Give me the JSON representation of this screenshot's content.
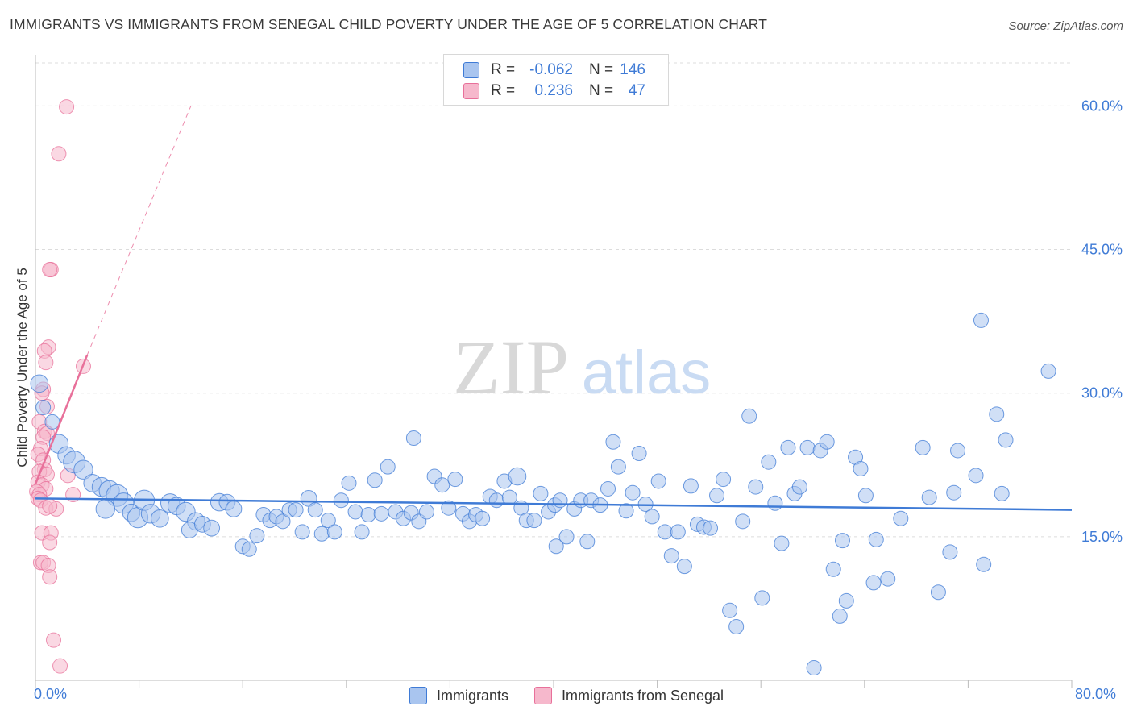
{
  "title": "IMMIGRANTS VS IMMIGRANTS FROM SENEGAL CHILD POVERTY UNDER THE AGE OF 5 CORRELATION CHART",
  "source": "Source: ZipAtlas.com",
  "watermark": {
    "zip": "ZIP",
    "atlas": "atlas"
  },
  "colors": {
    "blue": "#3f7bd6",
    "blue_fill": "#a9c5ef",
    "pink": "#e8709a",
    "pink_fill": "#f6b8cc"
  },
  "legend": {
    "rows": [
      {
        "r_label": "R =",
        "r_value": "-0.062",
        "n_label": "N =",
        "n_value": "146"
      },
      {
        "r_label": "R =",
        "r_value": "0.236",
        "n_label": "N =",
        "n_value": "47"
      }
    ]
  },
  "bottom_legend": [
    "Immigrants",
    "Immigrants from Senegal"
  ],
  "chart_data": {
    "type": "scatter",
    "title": "IMMIGRANTS VS IMMIGRANTS FROM SENEGAL CHILD POVERTY UNDER THE AGE OF 5 CORRELATION CHART",
    "xlabel": "",
    "ylabel": "Child Poverty Under the Age of 5",
    "x_tick_labels": [
      "0.0%",
      "80.0%"
    ],
    "y_tick_labels": [
      "15.0%",
      "30.0%",
      "45.0%",
      "60.0%"
    ],
    "xlim": [
      0,
      80
    ],
    "ylim": [
      0,
      65
    ],
    "y_ticks": [
      15,
      30,
      45,
      60
    ],
    "grid": true,
    "legend_position": "top-center",
    "series": [
      {
        "name": "Immigrants",
        "color": "#3f7bd6",
        "fill": "#a9c5ef",
        "trend": {
          "x": [
            0,
            80
          ],
          "y": [
            19.0,
            17.8
          ],
          "style": "solid"
        },
        "points": [
          [
            0.3,
            31.0,
            1.2
          ],
          [
            0.6,
            28.5,
            1.0
          ],
          [
            1.3,
            27.0,
            1.0
          ],
          [
            1.8,
            24.7,
            1.3
          ],
          [
            2.4,
            23.5,
            1.2
          ],
          [
            3.0,
            22.8,
            1.5
          ],
          [
            3.7,
            22.0,
            1.3
          ],
          [
            4.4,
            20.6,
            1.2
          ],
          [
            5.1,
            20.2,
            1.3
          ],
          [
            5.7,
            19.8,
            1.4
          ],
          [
            6.3,
            19.3,
            1.5
          ],
          [
            6.8,
            18.5,
            1.4
          ],
          [
            5.4,
            17.9,
            1.3
          ],
          [
            7.4,
            17.5,
            1.2
          ],
          [
            7.9,
            17.0,
            1.4
          ],
          [
            8.4,
            18.8,
            1.4
          ],
          [
            8.9,
            17.4,
            1.3
          ],
          [
            9.6,
            16.9,
            1.2
          ],
          [
            10.4,
            18.5,
            1.3
          ],
          [
            10.9,
            18.2,
            1.2
          ],
          [
            11.6,
            17.6,
            1.3
          ],
          [
            12.4,
            16.6,
            1.2
          ],
          [
            11.9,
            15.7,
            1.1
          ],
          [
            12.9,
            16.3,
            1.1
          ],
          [
            13.6,
            15.9,
            1.1
          ],
          [
            14.2,
            18.6,
            1.2
          ],
          [
            14.8,
            18.6,
            1.1
          ],
          [
            15.3,
            17.9,
            1.1
          ],
          [
            16.0,
            14.0,
            1.0
          ],
          [
            16.5,
            13.7,
            1.0
          ],
          [
            17.1,
            15.1,
            1.0
          ],
          [
            17.6,
            17.3,
            1.0
          ],
          [
            18.1,
            16.7,
            1.0
          ],
          [
            18.6,
            17.1,
            1.0
          ],
          [
            19.1,
            16.6,
            1.0
          ],
          [
            19.6,
            17.8,
            1.0
          ],
          [
            20.1,
            17.8,
            1.0
          ],
          [
            20.6,
            15.5,
            1.0
          ],
          [
            21.1,
            19.0,
            1.1
          ],
          [
            21.6,
            17.8,
            1.0
          ],
          [
            22.1,
            15.3,
            1.0
          ],
          [
            22.6,
            16.7,
            1.0
          ],
          [
            23.1,
            15.5,
            1.0
          ],
          [
            23.6,
            18.8,
            1.0
          ],
          [
            24.2,
            20.6,
            1.0
          ],
          [
            24.7,
            17.6,
            1.0
          ],
          [
            25.2,
            15.5,
            1.0
          ],
          [
            25.7,
            17.3,
            1.0
          ],
          [
            26.2,
            20.9,
            1.0
          ],
          [
            26.7,
            17.4,
            1.0
          ],
          [
            27.2,
            22.3,
            1.0
          ],
          [
            27.8,
            17.6,
            1.0
          ],
          [
            28.4,
            16.9,
            1.0
          ],
          [
            29.0,
            17.5,
            1.0
          ],
          [
            29.6,
            16.6,
            1.0
          ],
          [
            30.2,
            17.6,
            1.0
          ],
          [
            29.2,
            25.3,
            1.0
          ],
          [
            30.8,
            21.3,
            1.0
          ],
          [
            31.4,
            20.4,
            1.0
          ],
          [
            31.9,
            18.0,
            1.0
          ],
          [
            32.4,
            21.0,
            1.0
          ],
          [
            33.0,
            17.4,
            1.0
          ],
          [
            33.5,
            16.6,
            1.0
          ],
          [
            34.0,
            17.3,
            1.0
          ],
          [
            34.5,
            16.9,
            1.0
          ],
          [
            35.1,
            19.2,
            1.0
          ],
          [
            35.6,
            18.8,
            1.0
          ],
          [
            36.2,
            20.8,
            1.0
          ],
          [
            36.6,
            19.1,
            1.0
          ],
          [
            37.2,
            21.3,
            1.2
          ],
          [
            37.5,
            18.0,
            1.0
          ],
          [
            37.9,
            16.7,
            1.0
          ],
          [
            38.5,
            16.7,
            1.0
          ],
          [
            39.0,
            19.5,
            1.0
          ],
          [
            39.6,
            17.6,
            1.0
          ],
          [
            40.1,
            18.3,
            1.0
          ],
          [
            40.5,
            18.8,
            1.0
          ],
          [
            40.2,
            14.0,
            1.0
          ],
          [
            41.0,
            15.0,
            1.0
          ],
          [
            41.6,
            17.9,
            1.0
          ],
          [
            42.1,
            18.8,
            1.0
          ],
          [
            42.6,
            14.5,
            1.0
          ],
          [
            42.9,
            18.8,
            1.0
          ],
          [
            43.6,
            18.3,
            1.0
          ],
          [
            44.2,
            20.0,
            1.0
          ],
          [
            44.6,
            24.9,
            1.0
          ],
          [
            45.0,
            22.3,
            1.0
          ],
          [
            45.6,
            17.7,
            1.0
          ],
          [
            46.1,
            19.6,
            1.0
          ],
          [
            46.6,
            23.7,
            1.0
          ],
          [
            47.1,
            18.4,
            1.0
          ],
          [
            47.6,
            17.1,
            1.0
          ],
          [
            48.1,
            20.8,
            1.0
          ],
          [
            48.6,
            15.5,
            1.0
          ],
          [
            49.1,
            13.0,
            1.0
          ],
          [
            49.6,
            15.5,
            1.0
          ],
          [
            50.1,
            11.9,
            1.0
          ],
          [
            50.6,
            20.3,
            1.0
          ],
          [
            51.1,
            16.3,
            1.0
          ],
          [
            51.6,
            16.0,
            1.0
          ],
          [
            52.1,
            15.9,
            1.0
          ],
          [
            52.6,
            19.3,
            1.0
          ],
          [
            53.1,
            21.0,
            1.0
          ],
          [
            53.6,
            7.3,
            1.0
          ],
          [
            54.1,
            5.6,
            1.0
          ],
          [
            54.6,
            16.6,
            1.0
          ],
          [
            55.1,
            27.6,
            1.0
          ],
          [
            55.6,
            20.2,
            1.0
          ],
          [
            56.1,
            8.6,
            1.0
          ],
          [
            56.6,
            22.8,
            1.0
          ],
          [
            57.1,
            18.5,
            1.0
          ],
          [
            57.6,
            14.3,
            1.0
          ],
          [
            58.1,
            24.3,
            1.0
          ],
          [
            58.6,
            19.5,
            1.0
          ],
          [
            59.0,
            20.2,
            1.0
          ],
          [
            59.6,
            24.3,
            1.0
          ],
          [
            60.1,
            1.3,
            1.0
          ],
          [
            60.6,
            24.0,
            1.0
          ],
          [
            61.1,
            24.9,
            1.0
          ],
          [
            61.6,
            11.6,
            1.0
          ],
          [
            62.1,
            6.7,
            1.0
          ],
          [
            62.3,
            14.6,
            1.0
          ],
          [
            62.6,
            8.3,
            1.0
          ],
          [
            63.3,
            23.3,
            1.0
          ],
          [
            63.7,
            22.1,
            1.0
          ],
          [
            64.1,
            19.3,
            1.0
          ],
          [
            64.7,
            10.2,
            1.0
          ],
          [
            64.9,
            14.7,
            1.0
          ],
          [
            65.8,
            10.6,
            1.0
          ],
          [
            66.8,
            16.9,
            1.0
          ],
          [
            68.5,
            24.3,
            1.0
          ],
          [
            69.0,
            19.1,
            1.0
          ],
          [
            69.7,
            9.2,
            1.0
          ],
          [
            70.6,
            13.4,
            1.0
          ],
          [
            70.9,
            19.6,
            1.0
          ],
          [
            71.2,
            24.0,
            1.0
          ],
          [
            72.6,
            21.4,
            1.0
          ],
          [
            73.2,
            12.1,
            1.0
          ],
          [
            73.0,
            37.6,
            1.0
          ],
          [
            74.2,
            27.8,
            1.0
          ],
          [
            74.6,
            19.5,
            1.0
          ],
          [
            74.9,
            25.1,
            1.0
          ],
          [
            78.2,
            32.3,
            1.0
          ]
        ]
      },
      {
        "name": "Immigrants from Senegal",
        "color": "#e8709a",
        "fill": "#f6b8cc",
        "trend": {
          "x": [
            0,
            4
          ],
          "y": [
            20.5,
            34.0
          ],
          "style": "solid",
          "extension": {
            "x": [
              4,
              12
            ],
            "y": [
              34.0,
              60.0
            ],
            "style": "dashed"
          }
        },
        "points": [
          [
            2.4,
            59.9,
            1.0
          ],
          [
            1.8,
            55.0,
            1.0
          ],
          [
            1.2,
            42.9,
            1.0
          ],
          [
            1.1,
            42.9,
            1.0
          ],
          [
            1.0,
            34.8,
            1.0
          ],
          [
            0.7,
            34.4,
            1.0
          ],
          [
            0.8,
            33.2,
            1.0
          ],
          [
            3.7,
            32.8,
            1.0
          ],
          [
            0.6,
            30.4,
            1.0
          ],
          [
            0.5,
            30.0,
            1.0
          ],
          [
            0.9,
            28.6,
            1.0
          ],
          [
            0.3,
            27.0,
            1.0
          ],
          [
            0.7,
            26.0,
            1.0
          ],
          [
            0.9,
            25.8,
            1.0
          ],
          [
            0.6,
            25.4,
            1.0
          ],
          [
            0.4,
            24.2,
            1.0
          ],
          [
            0.2,
            23.6,
            1.0
          ],
          [
            0.6,
            23.0,
            1.0
          ],
          [
            0.7,
            22.0,
            1.0
          ],
          [
            0.3,
            21.8,
            1.0
          ],
          [
            0.9,
            21.5,
            1.0
          ],
          [
            2.5,
            21.4,
            1.0
          ],
          [
            0.2,
            20.7,
            1.0
          ],
          [
            0.5,
            20.4,
            1.0
          ],
          [
            0.8,
            20.0,
            1.0
          ],
          [
            0.1,
            19.7,
            1.0
          ],
          [
            0.3,
            19.4,
            1.0
          ],
          [
            0.2,
            19.0,
            1.0
          ],
          [
            0.4,
            18.8,
            1.0
          ],
          [
            2.9,
            19.4,
            1.0
          ],
          [
            0.8,
            18.0,
            1.0
          ],
          [
            1.6,
            17.9,
            1.0
          ],
          [
            1.1,
            18.2,
            1.0
          ],
          [
            0.5,
            15.4,
            1.0
          ],
          [
            1.2,
            15.4,
            1.0
          ],
          [
            1.1,
            14.4,
            1.0
          ],
          [
            0.4,
            12.3,
            1.0
          ],
          [
            0.6,
            12.3,
            1.0
          ],
          [
            1.0,
            12.0,
            1.0
          ],
          [
            1.1,
            10.8,
            1.0
          ],
          [
            1.4,
            4.2,
            1.0
          ],
          [
            1.9,
            1.5,
            1.0
          ]
        ]
      }
    ]
  }
}
